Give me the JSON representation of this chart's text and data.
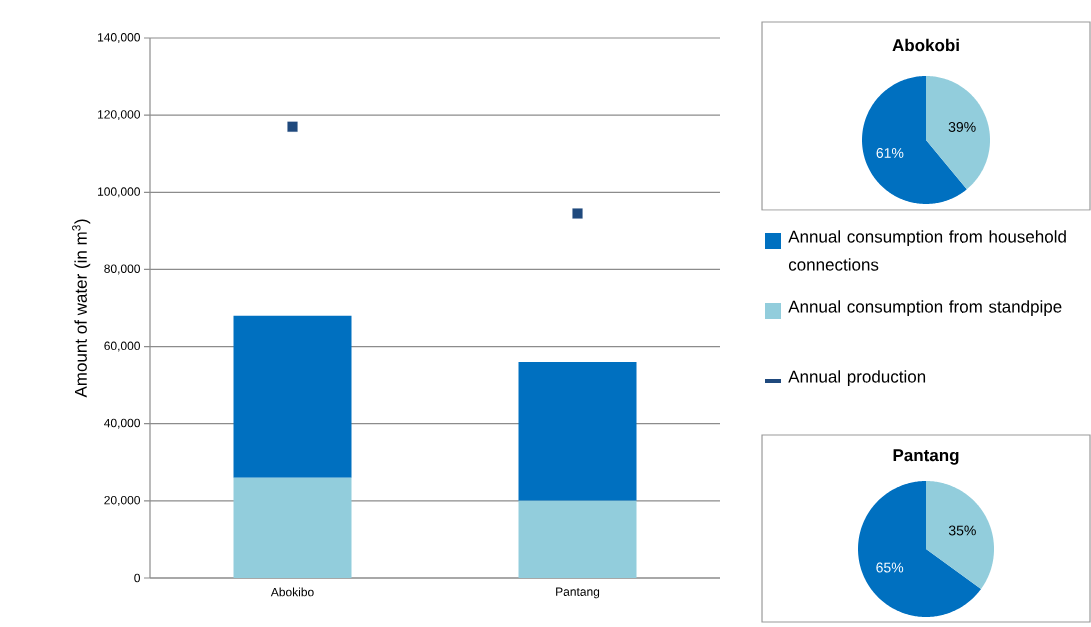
{
  "chart_data": [
    {
      "type": "bar",
      "stacked": true,
      "ylabel": "Amount of water (in m$^{3}$)",
      "categories": [
        "Abokibo",
        "Pantang"
      ],
      "ylim": [
        0,
        140000
      ],
      "yticks": [
        {
          "value": 0,
          "label": "0"
        },
        {
          "value": 20000,
          "label": "20,000"
        },
        {
          "value": 40000,
          "label": "40,000"
        },
        {
          "value": 60000,
          "label": "60,000"
        },
        {
          "value": 80000,
          "label": "80,000"
        },
        {
          "value": 100000,
          "label": "100,000"
        },
        {
          "value": 120000,
          "label": "120,000"
        },
        {
          "value": 140000,
          "label": "140,000"
        }
      ],
      "grid": "y",
      "legend": "right",
      "series": [
        {
          "name": "Annual consumption from standpipe",
          "color": "#92cddc",
          "values": [
            26000,
            20000
          ]
        },
        {
          "name": "Annual consumption from household connections",
          "color": "#0070c0",
          "values": [
            42000,
            36000
          ]
        },
        {
          "name": "Annual production",
          "type": "scatter",
          "marker": "square",
          "color": "#1f497d",
          "values": [
            117000,
            94500
          ]
        }
      ]
    },
    {
      "type": "pie",
      "title": "Abokobi",
      "categories": [
        null,
        null
      ],
      "values": [
        61,
        39
      ],
      "colors": [
        "#0070c0",
        "#92cddc"
      ],
      "value_labels": [
        "61%",
        "39%"
      ]
    },
    {
      "type": "pie",
      "title": "Pantang",
      "categories": [
        null,
        null
      ],
      "values": [
        65,
        35
      ],
      "colors": [
        "#0070c0",
        "#92cddc"
      ],
      "value_labels": [
        "65%",
        "35%"
      ]
    }
  ]
}
